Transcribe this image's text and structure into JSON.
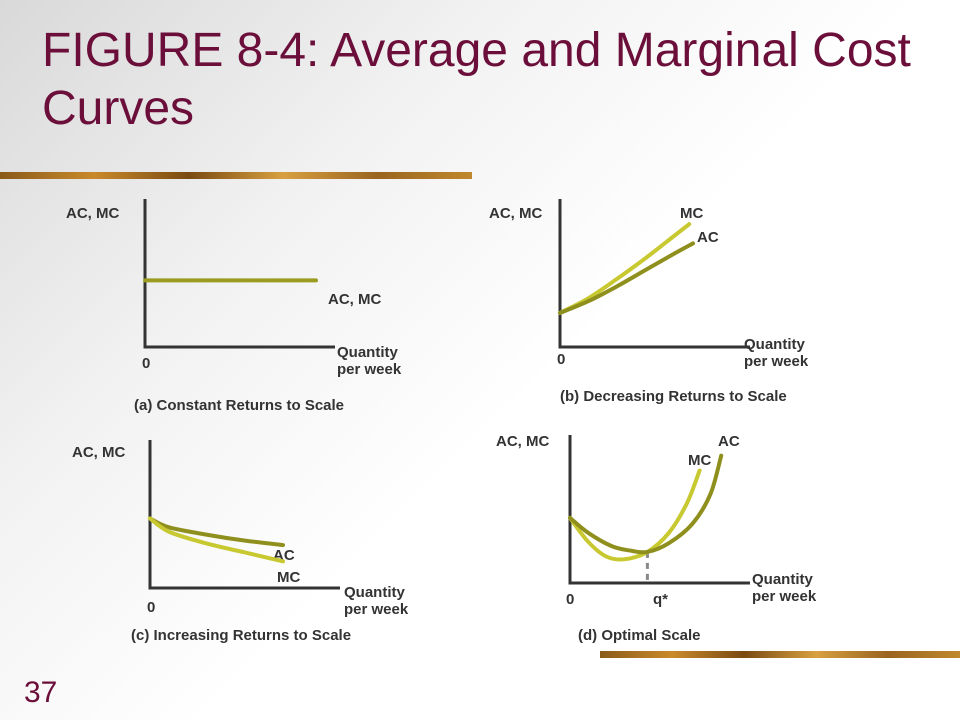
{
  "title": "FIGURE 8-4: Average and Marginal Cost Curves",
  "slide_number": "37",
  "colors": {
    "title": "#6b0f3a",
    "curve_light": "#c8c830",
    "curve_dark": "#8f8f1e",
    "axis": "#333333"
  },
  "chart_data": [
    {
      "type": "line",
      "caption": "(a) Constant Returns to Scale",
      "ylabel": "AC, MC",
      "xlabel": [
        "Quantity",
        "per week"
      ],
      "origin_label": "0",
      "xlim": [
        0,
        10
      ],
      "ylim": [
        0,
        10
      ],
      "series": [
        {
          "name": "AC, MC",
          "color": "#9b9b1f",
          "points": [
            [
              0,
              4.5
            ],
            [
              9,
              4.5
            ]
          ]
        }
      ]
    },
    {
      "type": "line",
      "caption": "(b) Decreasing Returns to Scale",
      "ylabel": "AC, MC",
      "xlabel": [
        "Quantity",
        "per week"
      ],
      "origin_label": "0",
      "xlim": [
        0,
        10
      ],
      "ylim": [
        0,
        10
      ],
      "series": [
        {
          "name": "MC",
          "color": "#c8c830",
          "points": [
            [
              0,
              2.3
            ],
            [
              1.5,
              3.3
            ],
            [
              3,
              4.6
            ],
            [
              4.5,
              6.0
            ],
            [
              6,
              7.5
            ],
            [
              6.8,
              8.3
            ]
          ]
        },
        {
          "name": "AC",
          "color": "#8f8f1e",
          "points": [
            [
              0,
              2.3
            ],
            [
              1.5,
              3.1
            ],
            [
              3,
              4.1
            ],
            [
              4.5,
              5.2
            ],
            [
              6,
              6.3
            ],
            [
              7,
              7.0
            ]
          ]
        }
      ]
    },
    {
      "type": "line",
      "caption": "(c) Increasing Returns to Scale",
      "ylabel": "AC, MC",
      "xlabel": [
        "Quantity",
        "per week"
      ],
      "origin_label": "0",
      "xlim": [
        0,
        10
      ],
      "ylim": [
        0,
        10
      ],
      "series": [
        {
          "name": "AC",
          "color": "#8f8f1e",
          "points": [
            [
              0,
              4.7
            ],
            [
              1,
              4.1
            ],
            [
              3,
              3.6
            ],
            [
              5,
              3.2
            ],
            [
              7,
              2.9
            ]
          ]
        },
        {
          "name": "MC",
          "color": "#c8c830",
          "points": [
            [
              0,
              4.7
            ],
            [
              1,
              3.8
            ],
            [
              3,
              3.0
            ],
            [
              5,
              2.4
            ],
            [
              7,
              1.8
            ]
          ]
        }
      ]
    },
    {
      "type": "line",
      "caption": "(d) Optimal Scale",
      "ylabel": "AC, MC",
      "xlabel": [
        "Quantity",
        "per week"
      ],
      "origin_label": "0",
      "marker_label": "q*",
      "marker_x": 4.3,
      "xlim": [
        0,
        10
      ],
      "ylim": [
        0,
        10
      ],
      "series": [
        {
          "name": "MC",
          "color": "#c8c830",
          "points": [
            [
              0,
              4.4
            ],
            [
              1,
              2.8
            ],
            [
              2,
              1.8
            ],
            [
              3,
              1.6
            ],
            [
              4.3,
              2.1
            ],
            [
              5.5,
              3.4
            ],
            [
              6.5,
              5.4
            ],
            [
              7.2,
              7.6
            ]
          ]
        },
        {
          "name": "AC",
          "color": "#8f8f1e",
          "points": [
            [
              0,
              4.4
            ],
            [
              1,
              3.4
            ],
            [
              2.3,
              2.5
            ],
            [
              3.3,
              2.2
            ],
            [
              4.3,
              2.1
            ],
            [
              5.5,
              2.7
            ],
            [
              6.8,
              4.0
            ],
            [
              7.8,
              6.0
            ],
            [
              8.4,
              8.6
            ]
          ]
        }
      ]
    }
  ]
}
